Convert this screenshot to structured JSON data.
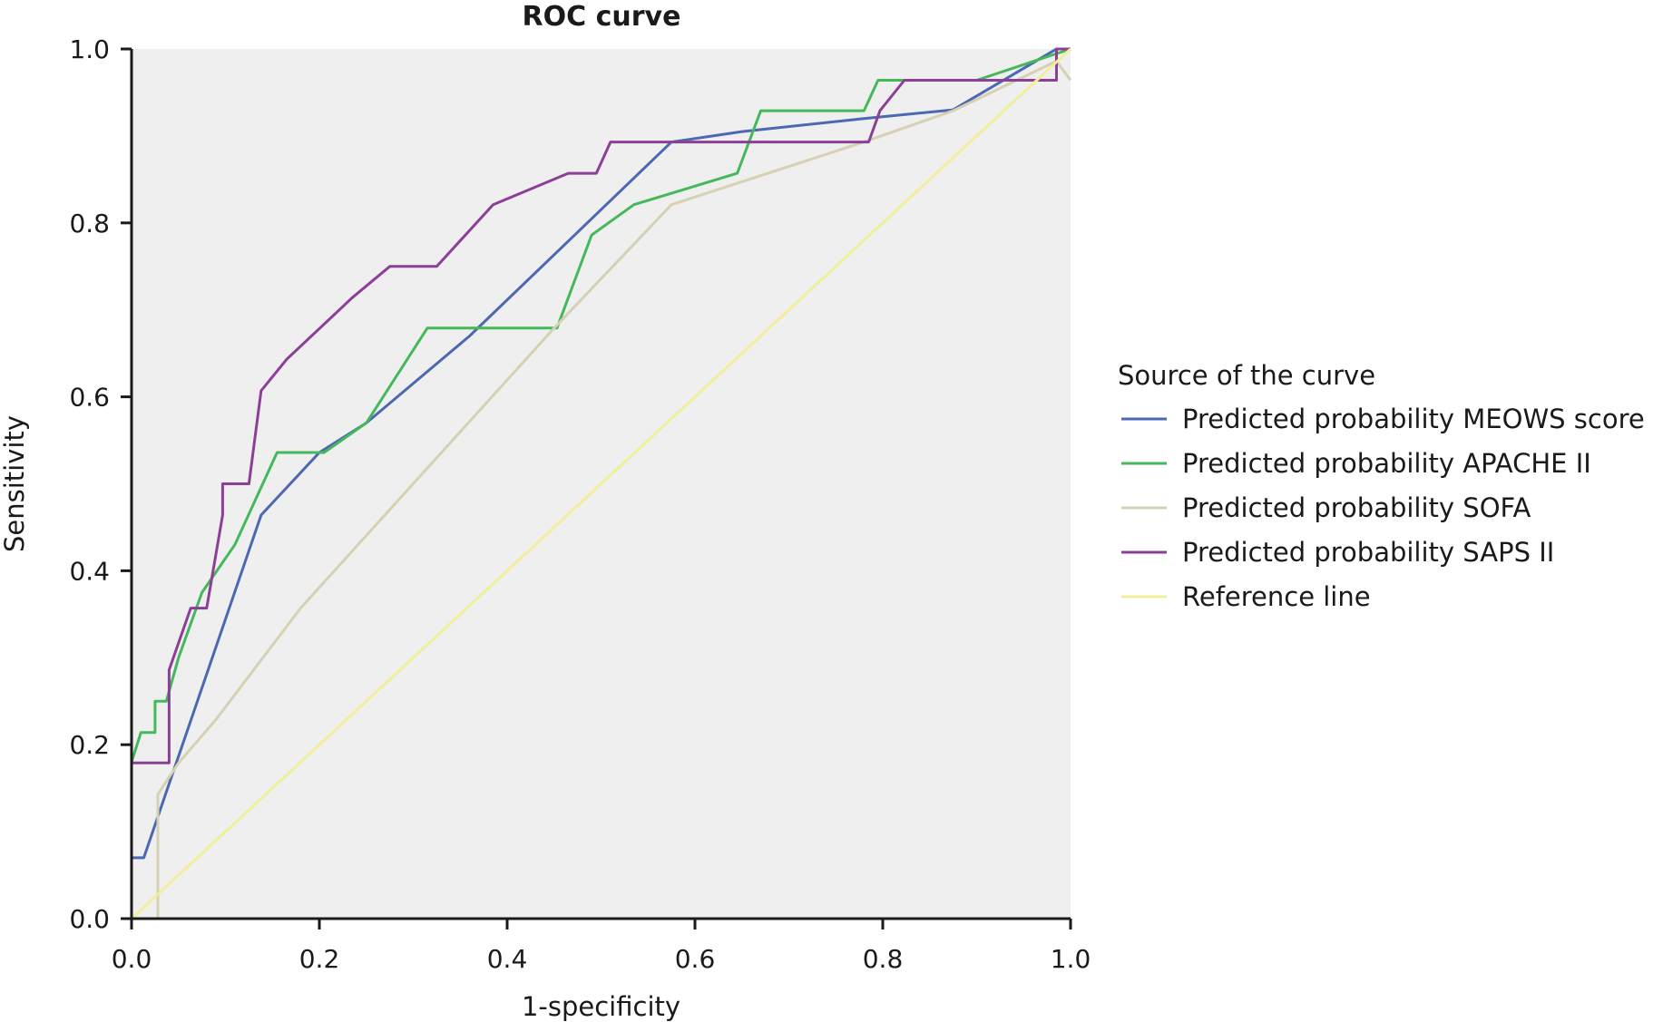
{
  "chart_data": {
    "type": "line",
    "title": "ROC curve",
    "xlabel": "1-specificity",
    "ylabel": "Sensitivity",
    "xlim": [
      0,
      1
    ],
    "ylim": [
      0,
      1
    ],
    "xticks": [
      "0.0",
      "0.2",
      "0.4",
      "0.6",
      "0.8",
      "1.0"
    ],
    "yticks": [
      "0.0",
      "0.2",
      "0.4",
      "0.6",
      "0.8",
      "1.0"
    ],
    "grid": false,
    "plot_background": "#efefef",
    "legend_title": "Source of the curve",
    "legend_position": "right",
    "series": [
      {
        "name": "Predicted probability MEOWS score",
        "color": "#4c68b0",
        "points": [
          [
            0,
            0
          ],
          [
            0,
            0.07
          ],
          [
            0.013,
            0.07
          ],
          [
            0.138,
            0.464
          ],
          [
            0.2,
            0.536
          ],
          [
            0.25,
            0.57
          ],
          [
            0.36,
            0.67
          ],
          [
            0.575,
            0.893
          ],
          [
            0.65,
            0.905
          ],
          [
            0.78,
            0.92
          ],
          [
            0.875,
            0.93
          ],
          [
            0.985,
            1.0
          ],
          [
            1.0,
            1.0
          ]
        ]
      },
      {
        "name": "Predicted probability APACHE II",
        "color": "#44b85a",
        "points": [
          [
            0,
            0.18
          ],
          [
            0.01,
            0.214
          ],
          [
            0.025,
            0.214
          ],
          [
            0.025,
            0.25
          ],
          [
            0.037,
            0.25
          ],
          [
            0.05,
            0.3
          ],
          [
            0.075,
            0.375
          ],
          [
            0.11,
            0.43
          ],
          [
            0.155,
            0.536
          ],
          [
            0.205,
            0.536
          ],
          [
            0.25,
            0.57
          ],
          [
            0.315,
            0.679
          ],
          [
            0.453,
            0.679
          ],
          [
            0.49,
            0.786
          ],
          [
            0.535,
            0.821
          ],
          [
            0.645,
            0.857
          ],
          [
            0.67,
            0.929
          ],
          [
            0.78,
            0.929
          ],
          [
            0.795,
            0.964
          ],
          [
            0.9,
            0.964
          ],
          [
            1.0,
            1.0
          ]
        ]
      },
      {
        "name": "Predicted probability SOFA",
        "color": "#d6d1b2",
        "points": [
          [
            0.028,
            0
          ],
          [
            0.028,
            0.143
          ],
          [
            0.05,
            0.179
          ],
          [
            0.09,
            0.229
          ],
          [
            0.18,
            0.357
          ],
          [
            0.45,
            0.679
          ],
          [
            0.575,
            0.821
          ],
          [
            0.78,
            0.893
          ],
          [
            0.875,
            0.929
          ],
          [
            0.985,
            0.986
          ],
          [
            1.0,
            0.964
          ]
        ]
      },
      {
        "name": "Predicted probability SAPS II",
        "color": "#8c3f96",
        "points": [
          [
            0,
            0
          ],
          [
            0,
            0.179
          ],
          [
            0.04,
            0.179
          ],
          [
            0.04,
            0.286
          ],
          [
            0.063,
            0.357
          ],
          [
            0.08,
            0.357
          ],
          [
            0.097,
            0.464
          ],
          [
            0.097,
            0.5
          ],
          [
            0.125,
            0.5
          ],
          [
            0.138,
            0.607
          ],
          [
            0.165,
            0.643
          ],
          [
            0.235,
            0.714
          ],
          [
            0.275,
            0.75
          ],
          [
            0.325,
            0.75
          ],
          [
            0.385,
            0.821
          ],
          [
            0.465,
            0.857
          ],
          [
            0.495,
            0.857
          ],
          [
            0.51,
            0.893
          ],
          [
            0.785,
            0.893
          ],
          [
            0.797,
            0.929
          ],
          [
            0.823,
            0.964
          ],
          [
            0.985,
            0.964
          ],
          [
            0.985,
            1.0
          ],
          [
            1.0,
            1.0
          ]
        ]
      },
      {
        "name": "Reference line",
        "color": "#f2ef9c",
        "points": [
          [
            0,
            0
          ],
          [
            1,
            1
          ]
        ]
      }
    ]
  }
}
